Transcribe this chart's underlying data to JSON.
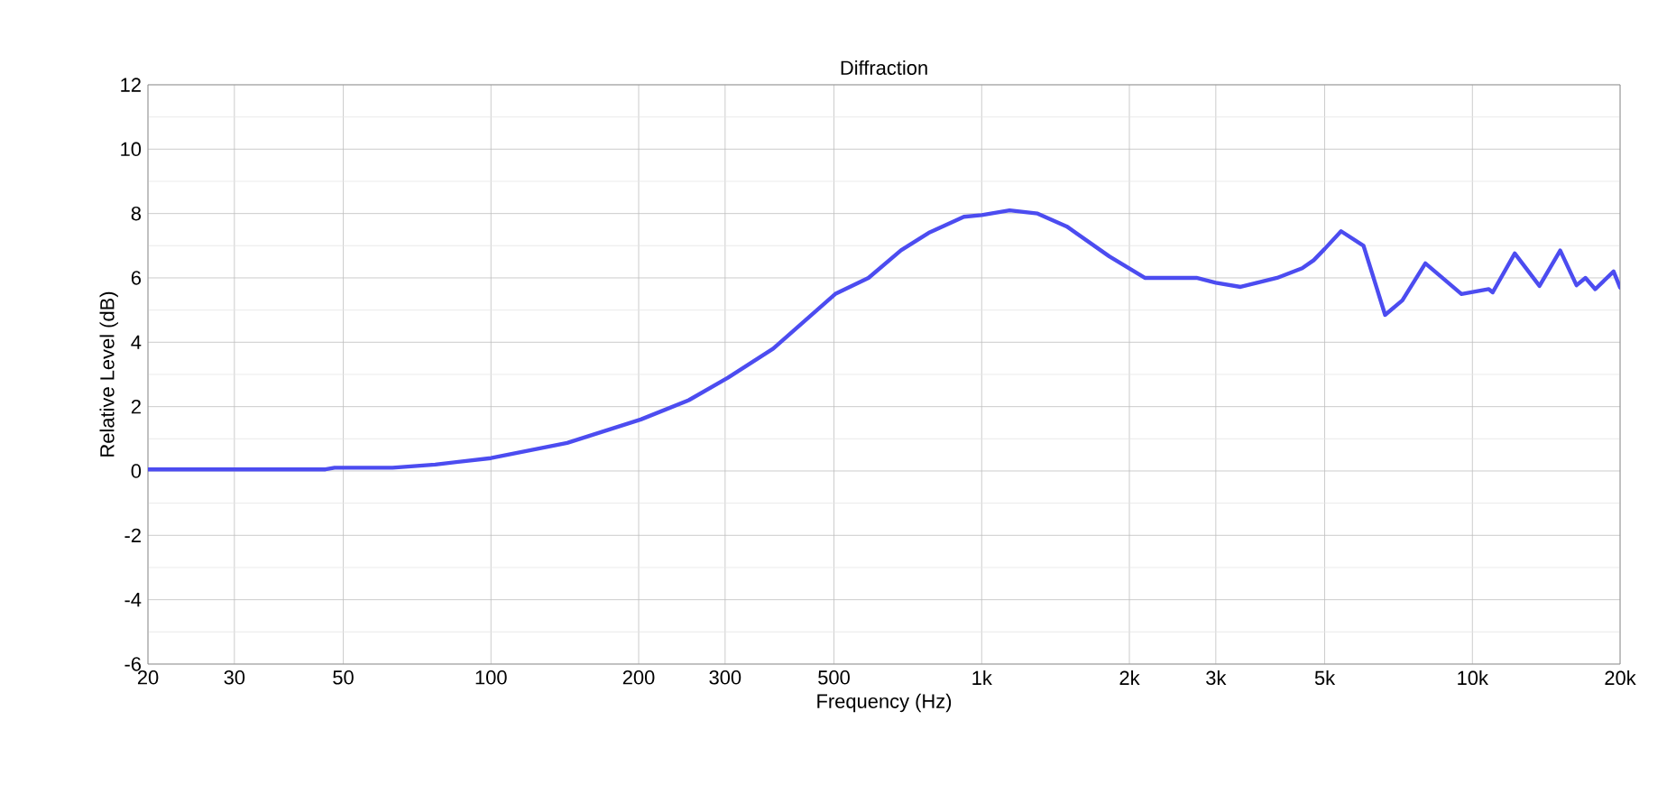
{
  "chart_data": {
    "type": "line",
    "title": "Diffraction",
    "xlabel": "Frequency (Hz)",
    "ylabel": "Relative Level (dB)",
    "log": "x",
    "grid": true,
    "line_style": "solid",
    "xlim": [
      20,
      20000
    ],
    "ylim": [
      -6,
      12
    ],
    "xticks": [
      20,
      30,
      50,
      100,
      200,
      300,
      500,
      {
        "value": 1000,
        "label": "1k"
      },
      {
        "value": 2000,
        "label": "2k"
      },
      {
        "value": 3000,
        "label": "3k"
      },
      {
        "value": 5000,
        "label": "5k"
      },
      {
        "value": 10000,
        "label": "10k"
      },
      {
        "value": 20000,
        "label": "20k"
      }
    ],
    "yticks": [
      -6,
      -4,
      -2,
      0,
      2,
      4,
      6,
      8,
      10,
      12
    ],
    "series": [
      {
        "color": "#4c4cf0",
        "x": [
          20,
          30,
          46,
          48,
          63,
          77,
          100,
          143,
          202,
          253,
          304,
          376,
          503,
          588,
          685,
          780,
          920,
          1000,
          1140,
          1300,
          1490,
          1820,
          2150,
          2740,
          3000,
          3370,
          4000,
          4500,
          4750,
          5000,
          5400,
          6000,
          6640,
          7200,
          8020,
          9500,
          10800,
          11000,
          12200,
          13700,
          15100,
          16300,
          17000,
          17800,
          19400,
          20000
        ],
        "values": [
          0.05,
          0.05,
          0.05,
          0.1,
          0.1,
          0.2,
          0.4,
          0.87,
          1.6,
          2.2,
          2.9,
          3.8,
          5.5,
          6.0,
          6.86,
          7.4,
          7.9,
          7.95,
          8.1,
          8.0,
          7.6,
          6.67,
          6.0,
          6.0,
          5.85,
          5.72,
          6.0,
          6.3,
          6.55,
          6.9,
          7.45,
          7.0,
          4.85,
          5.3,
          6.45,
          5.5,
          5.65,
          5.55,
          6.76,
          5.75,
          6.85,
          5.77,
          6.0,
          5.65,
          6.2,
          5.7
        ]
      }
    ]
  }
}
